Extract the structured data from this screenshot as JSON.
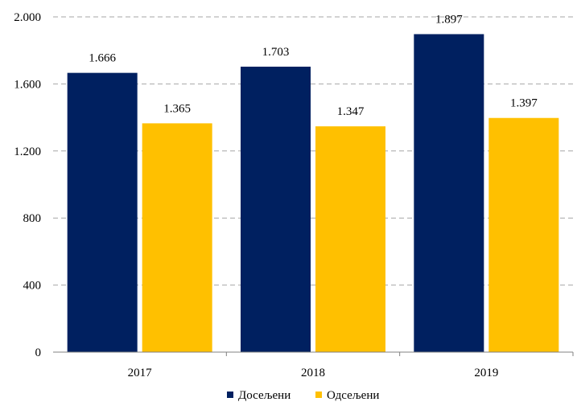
{
  "chart_data": {
    "type": "bar",
    "categories": [
      "2017",
      "2018",
      "2019"
    ],
    "series": [
      {
        "name": "Досељени",
        "values": [
          1666,
          1703,
          1897
        ],
        "labels": [
          "1.666",
          "1.703",
          "1.897"
        ],
        "color": "#002060"
      },
      {
        "name": "Одсељени",
        "values": [
          1365,
          1347,
          1397
        ],
        "labels": [
          "1.365",
          "1.347",
          "1.397"
        ],
        "color": "#FFC000"
      }
    ],
    "ylim": [
      0,
      2000
    ],
    "yticks": [
      0,
      400,
      800,
      1200,
      1600,
      2000
    ],
    "ytick_labels": [
      "0",
      "400",
      "800",
      "1.200",
      "1.600",
      "2.000"
    ],
    "grid": "horizontal dashed",
    "legend": "bottom-center",
    "title": "",
    "xlabel": "",
    "ylabel": ""
  }
}
